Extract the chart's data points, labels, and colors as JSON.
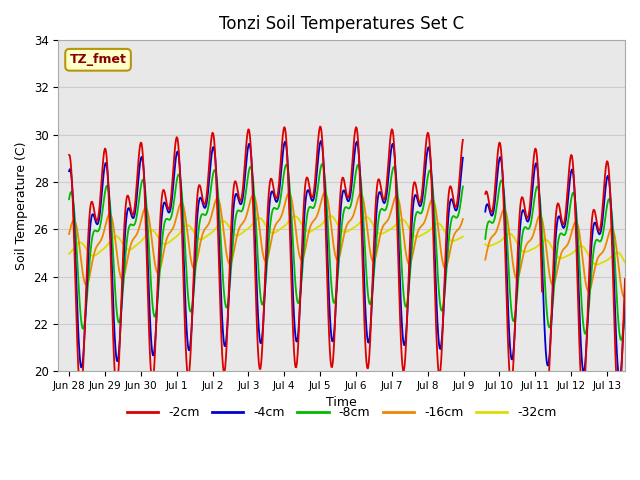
{
  "title": "Tonzi Soil Temperatures Set C",
  "xlabel": "Time",
  "ylabel": "Soil Temperature (C)",
  "ylim": [
    20,
    34
  ],
  "annotation_text": "TZ_fmet",
  "annotation_bg": "#ffffcc",
  "annotation_border": "#b8960c",
  "annotation_text_color": "#880000",
  "legend_labels": [
    "-2cm",
    "-4cm",
    "-8cm",
    "-16cm",
    "-32cm"
  ],
  "legend_colors": [
    "#dd0000",
    "#0000cc",
    "#00bb00",
    "#ee8800",
    "#dddd00"
  ],
  "bg_color": "#e8e8e8",
  "grid_color": "#cccccc",
  "tick_labels": [
    "Jun 28",
    "Jun 29",
    "Jun 30",
    "Jul 1",
    "Jul 2",
    "Jul 3",
    "Jul 4",
    "Jul 5",
    "Jul 6",
    "Jul 7",
    "Jul 8",
    "Jul 9",
    "Jul 10",
    "Jul 11",
    "Jul 12",
    "Jul 13"
  ]
}
